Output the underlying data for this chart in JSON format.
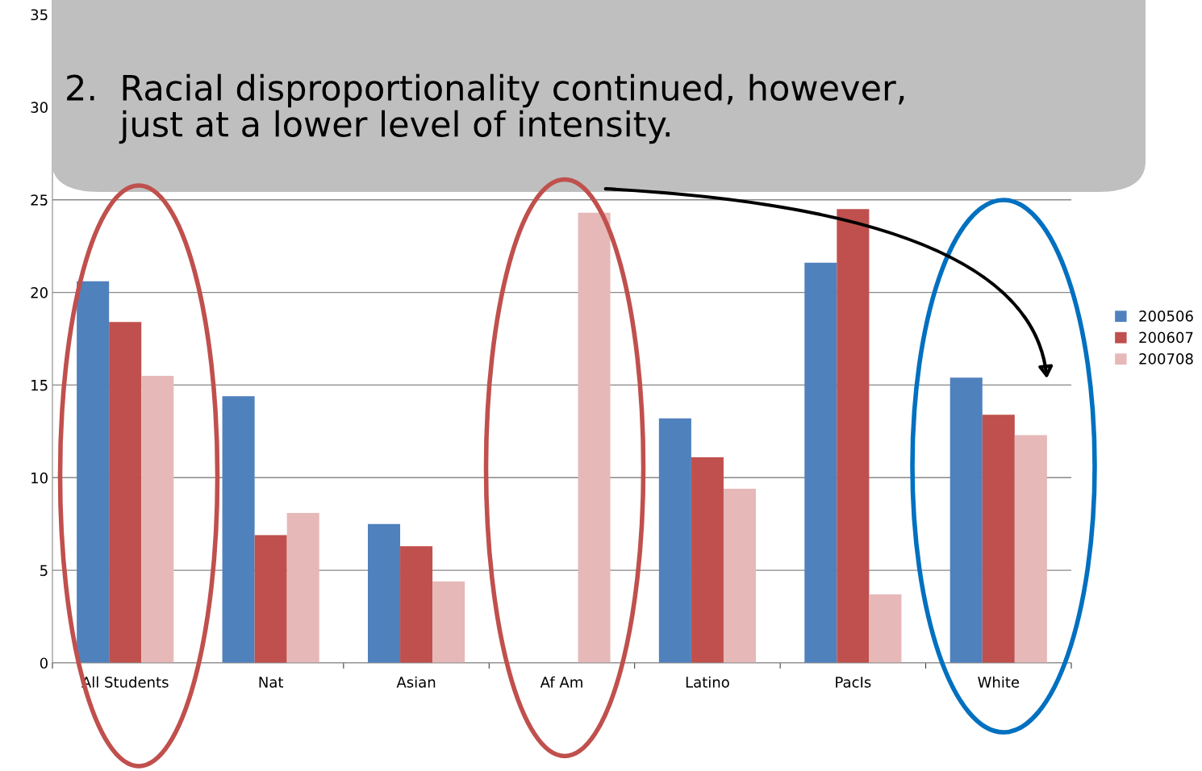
{
  "chart_data": {
    "type": "bar",
    "title": "2.  Racial disproportionality continued, however,\n     just at a lower level of intensity.",
    "categories": [
      "All Students",
      "Nat",
      "Asian",
      "Af Am",
      "Latino",
      "PacIs",
      "White"
    ],
    "series": [
      {
        "name": "200506",
        "color": "#4f81bd",
        "values": [
          20.6,
          14.4,
          7.5,
          null,
          13.2,
          21.6,
          15.4
        ]
      },
      {
        "name": "200607",
        "color": "#c0504d",
        "values": [
          18.4,
          6.9,
          6.3,
          null,
          11.1,
          24.5,
          13.4
        ]
      },
      {
        "name": "200708",
        "color": "#e6b9b8",
        "values": [
          15.5,
          8.1,
          4.4,
          24.3,
          9.4,
          3.7,
          12.3
        ]
      }
    ],
    "ylim": [
      0,
      35
    ],
    "yticks": [
      0,
      5,
      10,
      15,
      20,
      25,
      30,
      35
    ],
    "grid": "y",
    "legend": "right"
  }
}
